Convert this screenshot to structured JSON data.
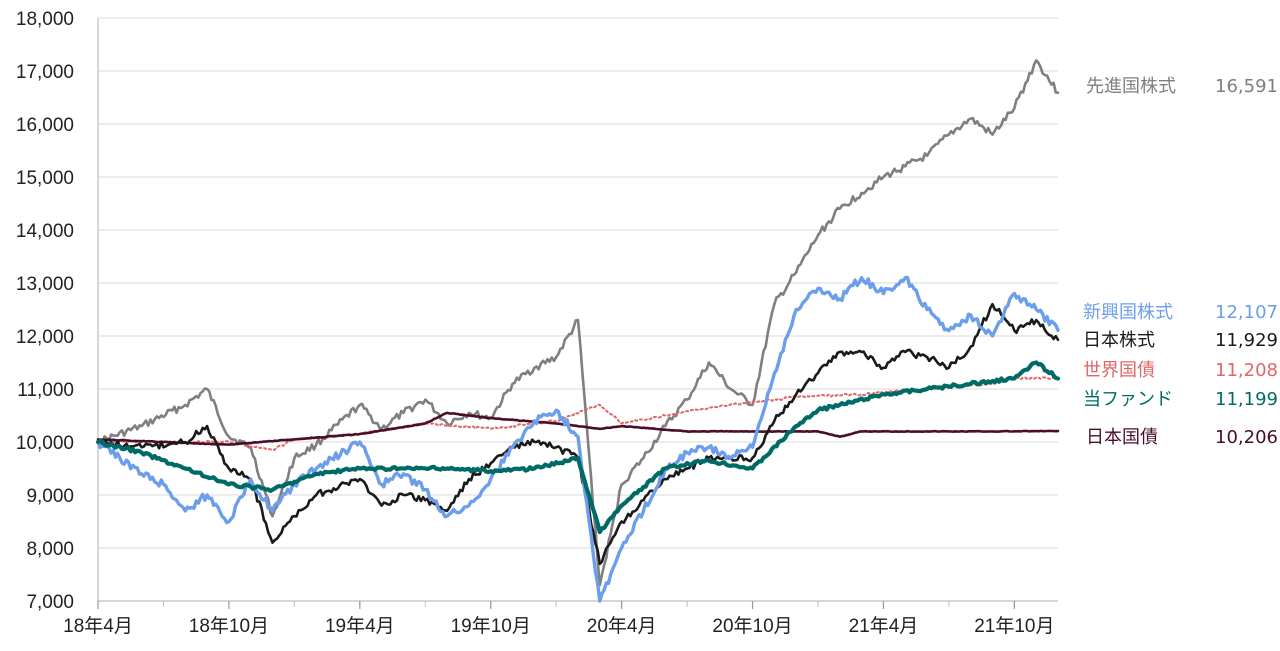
{
  "chart_data": {
    "type": "line",
    "ylim": [
      7000,
      18000
    ],
    "y_ticks": [
      7000,
      8000,
      9000,
      10000,
      11000,
      12000,
      13000,
      14000,
      15000,
      16000,
      17000,
      18000
    ],
    "y_tick_labels": [
      "7,000",
      "8,000",
      "9,000",
      "10,000",
      "11,000",
      "12,000",
      "13,000",
      "14,000",
      "15,000",
      "16,000",
      "17,000",
      "18,000"
    ],
    "x_range": [
      "2018-04",
      "2021-12"
    ],
    "x_ticks": [
      "2018-04",
      "2018-10",
      "2019-04",
      "2019-10",
      "2020-04",
      "2020-10",
      "2021-04",
      "2021-10"
    ],
    "x_tick_labels": [
      "18年4月",
      "18年10月",
      "19年4月",
      "19年10月",
      "20年4月",
      "20年10月",
      "21年4月",
      "21年10月"
    ],
    "grid": "horizontal",
    "series": [
      {
        "name": "先進国株式",
        "end_value_label": "16,591",
        "color": "#7f7f7f",
        "style": "solid",
        "x": [
          "2018-04",
          "2018-06",
          "2018-08",
          "2018-09",
          "2018-10",
          "2018-11",
          "2018-12",
          "2019-01",
          "2019-02",
          "2019-04",
          "2019-05",
          "2019-06",
          "2019-07",
          "2019-08",
          "2019-09",
          "2019-10",
          "2019-11",
          "2019-12",
          "2020-01",
          "2020-02",
          "2020-03",
          "2020-04",
          "2020-05",
          "2020-06",
          "2020-07",
          "2020-08",
          "2020-09",
          "2020-10",
          "2020-11",
          "2020-12",
          "2021-01",
          "2021-02",
          "2021-03",
          "2021-04",
          "2021-05",
          "2021-06",
          "2021-07",
          "2021-08",
          "2021-09",
          "2021-10",
          "2021-11",
          "2021-12"
        ],
        "values": [
          10000,
          10300,
          10700,
          11000,
          10100,
          9900,
          8600,
          9700,
          9950,
          10700,
          10250,
          10550,
          10800,
          10350,
          10550,
          10450,
          11100,
          11400,
          11600,
          12300,
          7300,
          9200,
          9700,
          10300,
          10800,
          11500,
          11000,
          10700,
          12600,
          13200,
          13900,
          14400,
          14700,
          15000,
          15200,
          15400,
          15800,
          16100,
          15800,
          16300,
          17200,
          16591
        ]
      },
      {
        "name": "新興国株式",
        "end_value_label": "12,107",
        "color": "#6d9eeb",
        "style": "solid",
        "x": [
          "2018-04",
          "2018-05",
          "2018-06",
          "2018-07",
          "2018-08",
          "2018-09",
          "2018-10",
          "2018-11",
          "2018-12",
          "2019-01",
          "2019-02",
          "2019-04",
          "2019-05",
          "2019-06",
          "2019-07",
          "2019-08",
          "2019-09",
          "2019-10",
          "2019-11",
          "2019-12",
          "2020-01",
          "2020-02",
          "2020-03",
          "2020-04",
          "2020-05",
          "2020-06",
          "2020-07",
          "2020-08",
          "2020-09",
          "2020-10",
          "2020-11",
          "2020-12",
          "2021-01",
          "2021-02",
          "2021-03",
          "2021-04",
          "2021-05",
          "2021-06",
          "2021-07",
          "2021-08",
          "2021-09",
          "2021-10",
          "2021-11",
          "2021-12"
        ],
        "values": [
          10000,
          9700,
          9400,
          9200,
          8700,
          9000,
          8500,
          9300,
          8700,
          9200,
          9500,
          10000,
          9200,
          9400,
          9100,
          8600,
          8800,
          9300,
          9900,
          10400,
          10600,
          10100,
          7000,
          8000,
          8700,
          9500,
          9800,
          9900,
          9700,
          9900,
          11300,
          12500,
          12900,
          12700,
          13100,
          12800,
          13100,
          12500,
          12100,
          12400,
          12000,
          12800,
          12500,
          12107
        ]
      },
      {
        "name": "日本株式",
        "end_value_label": "11,929",
        "color": "#1a1a1a",
        "style": "solid",
        "x": [
          "2018-04",
          "2018-06",
          "2018-08",
          "2018-09",
          "2018-10",
          "2018-11",
          "2018-12",
          "2019-01",
          "2019-02",
          "2019-04",
          "2019-05",
          "2019-06",
          "2019-07",
          "2019-08",
          "2019-09",
          "2019-10",
          "2019-11",
          "2019-12",
          "2020-01",
          "2020-02",
          "2020-03",
          "2020-04",
          "2020-05",
          "2020-06",
          "2020-07",
          "2020-08",
          "2020-09",
          "2020-10",
          "2020-11",
          "2020-12",
          "2021-01",
          "2021-02",
          "2021-03",
          "2021-04",
          "2021-05",
          "2021-06",
          "2021-07",
          "2021-08",
          "2021-09",
          "2021-10",
          "2021-11",
          "2021-12"
        ],
        "values": [
          10000,
          9900,
          10000,
          10300,
          9500,
          9300,
          8100,
          8600,
          9000,
          9300,
          8800,
          9000,
          8900,
          8700,
          9300,
          9600,
          9900,
          10000,
          9900,
          9700,
          7700,
          8500,
          8900,
          9300,
          9500,
          9700,
          9700,
          9700,
          10400,
          10900,
          11300,
          11700,
          11700,
          11400,
          11700,
          11600,
          11400,
          11800,
          12600,
          12100,
          12300,
          11929
        ]
      },
      {
        "name": "世界国債",
        "end_value_label": "11,208",
        "color": "#e06666",
        "style": "dotted",
        "x": [
          "2018-04",
          "2018-06",
          "2018-08",
          "2018-10",
          "2018-12",
          "2019-01",
          "2019-04",
          "2019-07",
          "2019-10",
          "2020-01",
          "2020-03",
          "2020-04",
          "2020-06",
          "2020-08",
          "2020-10",
          "2020-12",
          "2021-03",
          "2021-06",
          "2021-09",
          "2021-10",
          "2021-12"
        ],
        "values": [
          10000,
          10000,
          10000,
          10000,
          9850,
          10050,
          10150,
          10350,
          10250,
          10400,
          10700,
          10350,
          10500,
          10650,
          10750,
          10850,
          10900,
          11000,
          11100,
          11200,
          11208
        ]
      },
      {
        "name": "当ファンド",
        "end_value_label": "11,199",
        "color": "#006b66",
        "style": "solid",
        "x": [
          "2018-04",
          "2018-06",
          "2018-08",
          "2018-10",
          "2018-12",
          "2019-02",
          "2019-04",
          "2019-06",
          "2019-08",
          "2019-10",
          "2019-12",
          "2020-02",
          "2020-03",
          "2020-04",
          "2020-06",
          "2020-08",
          "2020-10",
          "2020-12",
          "2021-01",
          "2021-02",
          "2021-04",
          "2021-06",
          "2021-08",
          "2021-10",
          "2021-11",
          "2021-12"
        ],
        "values": [
          10000,
          9800,
          9500,
          9200,
          9100,
          9400,
          9500,
          9500,
          9500,
          9450,
          9500,
          9700,
          8300,
          8800,
          9500,
          9650,
          9500,
          10300,
          10600,
          10700,
          10900,
          11000,
          11100,
          11200,
          11500,
          11199
        ]
      },
      {
        "name": "日本国債",
        "end_value_label": "10,206",
        "color": "#4a0e2a",
        "style": "solid",
        "x": [
          "2018-04",
          "2018-07",
          "2018-10",
          "2019-01",
          "2019-04",
          "2019-07",
          "2019-08",
          "2019-10",
          "2020-01",
          "2020-03",
          "2020-04",
          "2020-07",
          "2020-10",
          "2021-01",
          "2021-02",
          "2021-03",
          "2021-06",
          "2021-09",
          "2021-12"
        ],
        "values": [
          10050,
          10000,
          9950,
          10050,
          10150,
          10350,
          10550,
          10450,
          10350,
          10250,
          10300,
          10200,
          10200,
          10200,
          10100,
          10200,
          10200,
          10200,
          10206
        ]
      }
    ]
  }
}
